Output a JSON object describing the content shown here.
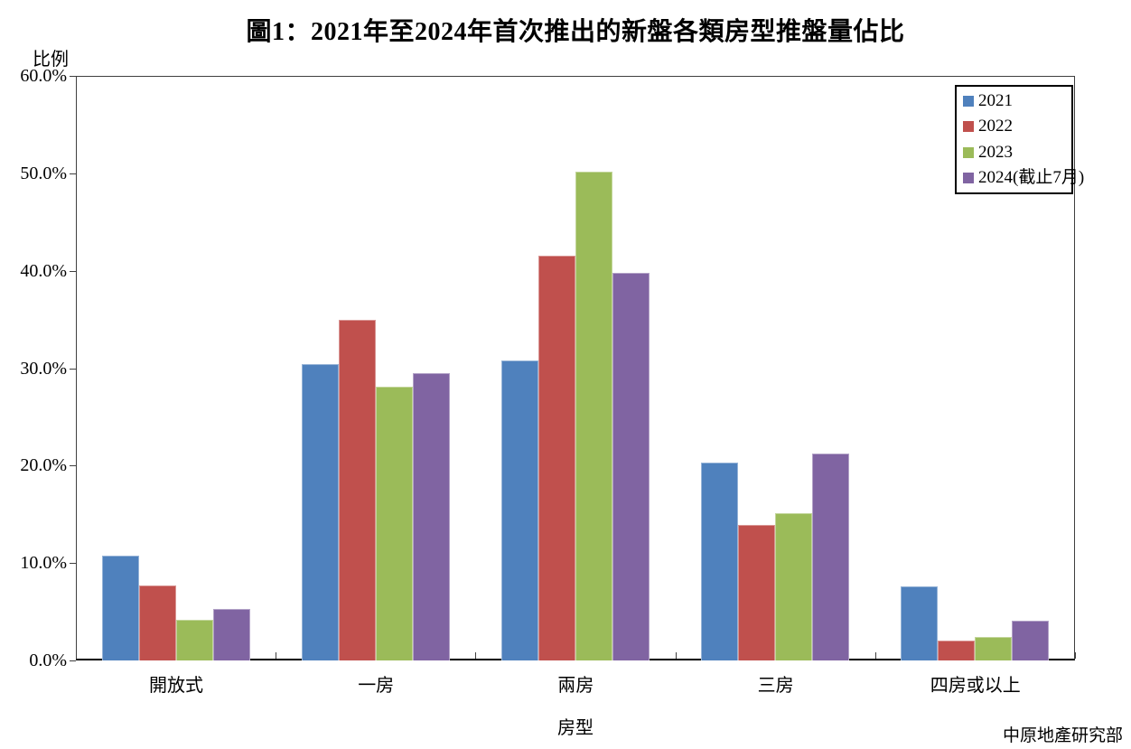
{
  "chart_data": {
    "type": "bar",
    "title": "圖1：2021年至2024年首次推出的新盤各類房型推盤量佔比",
    "ylabel": "比例",
    "xlabel": "房型",
    "source": "中原地產研究部",
    "categories": [
      "開放式",
      "一房",
      "兩房",
      "三房",
      "四房或以上"
    ],
    "series": [
      {
        "name": "2021",
        "color": "#4F81BD",
        "border_color": "#95B3D7",
        "values": [
          10.8,
          30.4,
          30.8,
          20.3,
          7.6
        ]
      },
      {
        "name": "2022",
        "color": "#C0504D",
        "border_color": "#D99694",
        "values": [
          7.7,
          35.0,
          41.5,
          13.9,
          2.0
        ]
      },
      {
        "name": "2023",
        "color": "#9BBB59",
        "border_color": "#C3D69B",
        "values": [
          4.2,
          28.1,
          50.2,
          15.1,
          2.4
        ]
      },
      {
        "name": "2024(截止7月)",
        "color": "#8064A2",
        "border_color": "#B3A2C7",
        "values": [
          5.3,
          29.5,
          39.8,
          21.2,
          4.1
        ]
      }
    ],
    "y_axis": {
      "min": 0,
      "max": 60,
      "step": 10,
      "tick_labels": [
        "0.0%",
        "10.0%",
        "20.0%",
        "30.0%",
        "40.0%",
        "50.0%",
        "60.0%"
      ]
    },
    "legend_position": "inside-top-right",
    "grid": false
  }
}
